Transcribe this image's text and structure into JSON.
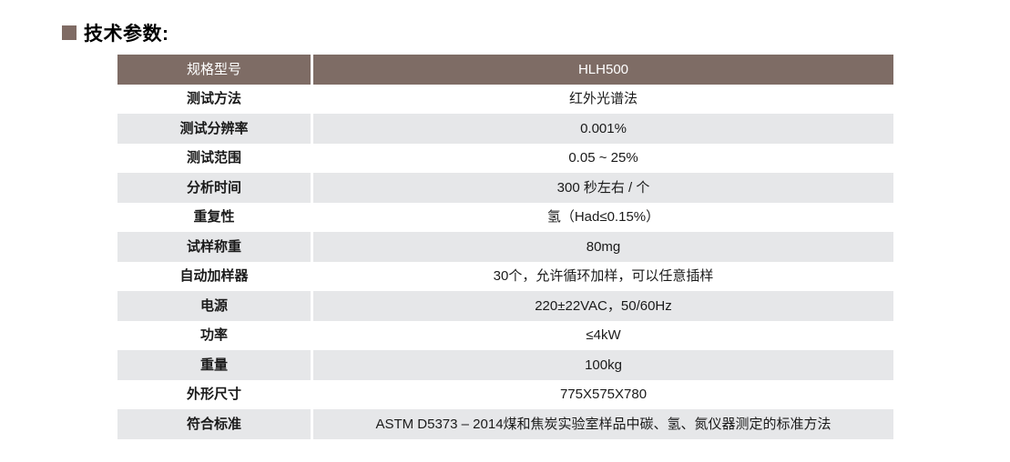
{
  "page": {
    "background": "#ffffff",
    "text_color": "#1a1a1a"
  },
  "title": {
    "text": "技术参数:",
    "bullet_color": "#7f6b64"
  },
  "table": {
    "colors": {
      "header_bg": "#7e6c65",
      "header_text": "#ffffff",
      "row_white": "#ffffff",
      "row_gray": "#e6e7e9"
    },
    "header": {
      "label": "规格型号",
      "value": "HLH500"
    },
    "rows": [
      {
        "label": "测试方法",
        "value": "红外光谱法"
      },
      {
        "label": "测试分辨率",
        "value": "0.001%"
      },
      {
        "label": "测试范围",
        "value": "0.05 ~ 25%"
      },
      {
        "label": "分析时间",
        "value": "300 秒左右 / 个"
      },
      {
        "label": "重复性",
        "value": "氢（Had≤0.15%）"
      },
      {
        "label": "试样称重",
        "value": "80mg"
      },
      {
        "label": "自动加样器",
        "value": "30个，允许循环加样，可以任意插样"
      },
      {
        "label": "电源",
        "value": "220±22VAC，50/60Hz"
      },
      {
        "label": "功率",
        "value": "≤4kW"
      },
      {
        "label": "重量",
        "value": "100kg"
      },
      {
        "label": "外形尺寸",
        "value": "775X575X780"
      },
      {
        "label": "符合标准",
        "value": "ASTM D5373 – 2014煤和焦炭实验室样品中碳、氢、氮仪器测定的标准方法"
      }
    ]
  }
}
